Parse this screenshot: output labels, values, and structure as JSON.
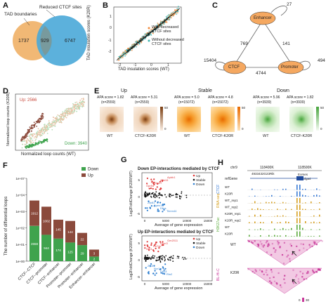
{
  "panels": {
    "A": "A",
    "B": "B",
    "C": "C",
    "D": "D",
    "E": "E",
    "F": "F",
    "G": "G",
    "H": "H"
  },
  "venn": {
    "left_label": "TAD boundaries",
    "right_label": "Reduced CTCF sites",
    "left_only": "1737",
    "overlap": "929",
    "right_only": "6747",
    "left_color": "#f0b46e",
    "right_color": "#4aa8d8"
  },
  "scatter_b": {
    "ylabel": "TAD insulation scores (K20R)",
    "xlabel": "TAD insulation scores (WT)",
    "legend": [
      "With decreased CTCF sites",
      "Without decreased CTCF sites"
    ],
    "legend_colors": [
      "#f08a3c",
      "#3fb6b0"
    ],
    "xticks": [
      "-2",
      "-1",
      "0",
      "1"
    ],
    "yticks": [
      "-2",
      "-1",
      "0",
      "1"
    ]
  },
  "network_c": {
    "nodes": [
      "Enhancer",
      "CTCF",
      "Promoter"
    ],
    "self_loops": {
      "Enhancer": "27",
      "CTCF": "15404",
      "Promoter": "494"
    },
    "edges": {
      "ctcf_enhancer": "769",
      "enhancer_promoter": "141",
      "ctcf_promoter": "4744"
    },
    "node_color": "#f5a860"
  },
  "scatter_d": {
    "up_label": "Up: 2566",
    "down_label": "Down: 3940",
    "ylabel": "Normalized loop counts (K20R)",
    "xlabel": "Normalized loop counts (WT)",
    "up_color": "#c8473a",
    "down_color": "#3fa34d"
  },
  "apa_e": {
    "groups": [
      {
        "title": "Up",
        "wt_score": "APA score = 1.82",
        "wt_n": "(n=2559)",
        "mut_score": "APA score = 5.31",
        "mut_n": "(n=2559)"
      },
      {
        "title": "Stable",
        "wt_score": "APA score = 5.0",
        "wt_n": "(n=15072)",
        "mut_score": "APA score = 4.8",
        "mut_n": "(n=15072)"
      },
      {
        "title": "Down",
        "wt_score": "APA score = 5.96",
        "wt_n": "(n=3939)",
        "mut_score": "APA score = 1.82",
        "mut_n": "(n=3939)"
      }
    ],
    "xlabels": [
      "WT",
      "CTCF-K20R"
    ],
    "scale_max": "50",
    "scale_min": "0"
  },
  "chart_data": [
    {
      "type": "bar",
      "ylabel": "The number of differential loops",
      "yscale": "log",
      "categories": [
        "CTCF--CTCF",
        "CTCF--promoter",
        "CTCF--enhancer",
        "Promoter--promoter",
        "Promoter--enhancer",
        "Enhancer--enhancer"
      ],
      "series": [
        {
          "name": "Down",
          "values": [
            2658,
            944,
            174,
            125,
            29,
            2
          ]
        },
        {
          "name": "Up",
          "values": [
            1912,
            1002,
            145,
            144,
            22,
            3
          ]
        }
      ],
      "colors": {
        "Down": "#3fa34d",
        "Up": "#8b4a3c"
      },
      "yticks": [
        "1e+00",
        "1e+01",
        "1e+02",
        "1e+03",
        "1e+04",
        "1e+07"
      ]
    },
    {
      "type": "scatter",
      "title": "Down EP-interactions mediated by CTCF",
      "xlabel": "Average of gene expression",
      "ylabel": "Log2FoldChange (K20R/WT)",
      "legend": [
        "Up",
        "Stable",
        "Down"
      ],
      "xticks": [
        "0",
        "5000",
        "10000",
        "15000"
      ],
      "yticks": [
        "-5",
        "0",
        "5"
      ],
      "labels_up": [
        "Gpr84",
        "B3gnt7",
        "Asb15",
        "Apbb1"
      ],
      "labels_down": [
        "Zfp81",
        "Apex1",
        "Dfna",
        "Timm44"
      ]
    },
    {
      "type": "scatter",
      "title": "Up EP-interactions mediated by CTCF",
      "xlabel": "Average of gene expression",
      "ylabel": "Log2FoldChange (K20R/WT)",
      "legend": [
        "Up",
        "Stable",
        "Down"
      ],
      "xticks": [
        "0",
        "5000",
        "10000",
        "15000"
      ],
      "yticks": [
        "-5",
        "0",
        "5"
      ],
      "labels_up": [
        "Nrn1",
        "Rn7sk",
        "Rbm3",
        "Gm2011"
      ],
      "labels_down": [
        "Zfp3",
        "Ncr1",
        "Dpy3",
        "Rin2"
      ]
    }
  ],
  "tracks_h": {
    "chr": "chr9",
    "coords": [
      "118400K",
      "118500K"
    ],
    "genes": [
      "4933432G23Rik",
      "Eomes",
      "Golga4"
    ],
    "ref_label": "refGene",
    "track_labels": [
      "WT",
      "K20R",
      "WT_rep1",
      "WT_rep2",
      "K20R_rep1",
      "K20R_rep2",
      "WT",
      "K20R"
    ],
    "side_labels": [
      "CTCF",
      "RNA-seq",
      "H3K27ac",
      "BL-Hi-C"
    ],
    "side_colors": [
      "#3a7bd5",
      "#d6a022",
      "#5cab3d",
      "#c8389a"
    ],
    "hic_wt": "WT",
    "hic_k20r": "K20R",
    "scale_bar": "30",
    "scale_label": "0"
  }
}
